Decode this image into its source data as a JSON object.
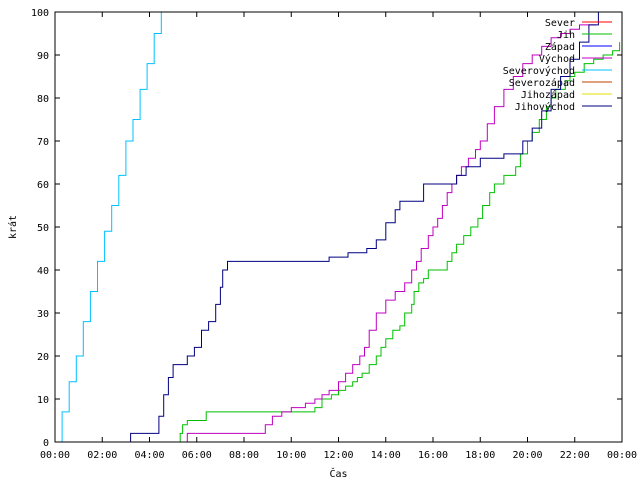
{
  "chart_data": {
    "type": "line",
    "xlabel": "Čas",
    "ylabel": "krát",
    "xlim": [
      0,
      24
    ],
    "ylim": [
      0,
      100
    ],
    "x_ticks": [
      {
        "value": 0,
        "label": "00:00"
      },
      {
        "value": 2,
        "label": "02:00"
      },
      {
        "value": 4,
        "label": "04:00"
      },
      {
        "value": 6,
        "label": "06:00"
      },
      {
        "value": 8,
        "label": "08:00"
      },
      {
        "value": 10,
        "label": "10:00"
      },
      {
        "value": 12,
        "label": "12:00"
      },
      {
        "value": 14,
        "label": "14:00"
      },
      {
        "value": 16,
        "label": "16:00"
      },
      {
        "value": 18,
        "label": "18:00"
      },
      {
        "value": 20,
        "label": "20:00"
      },
      {
        "value": 22,
        "label": "22:00"
      },
      {
        "value": 24,
        "label": "00:00"
      }
    ],
    "y_ticks": [
      0,
      10,
      20,
      30,
      40,
      50,
      60,
      70,
      80,
      90,
      100
    ],
    "grid": false,
    "legend_position": "top-right",
    "series": [
      {
        "name": "Sever",
        "color": "#ff0000",
        "x": [],
        "y": []
      },
      {
        "name": "Jih",
        "color": "#00c000",
        "x": [
          0,
          5.1,
          5.3,
          5.4,
          5.6,
          6.4,
          10.4,
          11.0,
          11.3,
          11.7,
          12.0,
          12.3,
          12.6,
          12.8,
          13.0,
          13.3,
          13.6,
          13.8,
          14.0,
          14.3,
          14.6,
          14.8,
          15.1,
          15.2,
          15.4,
          15.6,
          15.8,
          16.2,
          16.6,
          16.8,
          17.0,
          17.3,
          17.6,
          17.9,
          18.1,
          18.4,
          18.6,
          19.0,
          19.5,
          19.7,
          20.0,
          20.2,
          20.5,
          20.8,
          21.0,
          21.2,
          21.6,
          21.8,
          22.0,
          22.4,
          22.8,
          23.2,
          23.6,
          23.9
        ],
        "y": [
          0,
          0,
          2,
          4,
          5,
          7,
          7,
          8,
          10,
          11,
          12,
          13,
          14,
          15,
          16,
          18,
          20,
          22,
          24,
          26,
          27,
          30,
          32,
          35,
          37,
          38,
          40,
          40,
          42,
          44,
          46,
          48,
          50,
          52,
          55,
          58,
          60,
          62,
          64,
          67,
          70,
          72,
          75,
          78,
          80,
          82,
          84,
          85,
          86,
          88,
          89,
          90,
          91,
          93
        ]
      },
      {
        "name": "Západ",
        "color": "#0000ff",
        "x": [],
        "y": []
      },
      {
        "name": "Východ",
        "color": "#c000c0",
        "x": [
          0,
          5.5,
          5.6,
          8.5,
          8.9,
          9.2,
          9.6,
          10.0,
          10.6,
          11.0,
          11.3,
          11.6,
          12.0,
          12.3,
          12.6,
          12.9,
          13.1,
          13.3,
          13.6,
          14.0,
          14.4,
          14.8,
          15.1,
          15.3,
          15.5,
          15.8,
          16.0,
          16.2,
          16.4,
          16.6,
          16.8,
          17.0,
          17.2,
          17.5,
          17.8,
          18.0,
          18.3,
          18.6,
          19.0,
          19.4,
          19.8,
          20.2,
          20.6,
          21.0,
          21.4,
          21.8,
          22.2,
          22.6,
          22.9
        ],
        "y": [
          0,
          0,
          2,
          2,
          4,
          6,
          7,
          8,
          9,
          10,
          11,
          12,
          14,
          16,
          18,
          20,
          22,
          26,
          30,
          33,
          35,
          37,
          40,
          42,
          45,
          48,
          50,
          52,
          55,
          58,
          60,
          62,
          64,
          66,
          68,
          70,
          74,
          78,
          82,
          85,
          88,
          90,
          92,
          94,
          95,
          96,
          97,
          97,
          97
        ]
      },
      {
        "name": "Severovýchod",
        "color": "#00c0ff",
        "x": [
          0,
          0.3,
          0.6,
          0.9,
          1.2,
          1.5,
          1.8,
          2.1,
          2.4,
          2.7,
          3.0,
          3.3,
          3.6,
          3.9,
          4.2,
          4.5
        ],
        "y": [
          0,
          7,
          14,
          20,
          28,
          35,
          42,
          49,
          55,
          62,
          70,
          75,
          82,
          88,
          95,
          100
        ]
      },
      {
        "name": "Severozápad",
        "color": "#c04000",
        "x": [],
        "y": []
      },
      {
        "name": "Jihozápad",
        "color": "#e0e000",
        "x": [],
        "y": []
      },
      {
        "name": "Jihovýchod",
        "color": "#000080",
        "x": [
          0,
          3.2,
          4.2,
          4.4,
          4.6,
          4.8,
          5.0,
          5.6,
          5.9,
          6.2,
          6.5,
          6.8,
          7.0,
          7.1,
          7.3,
          8.0,
          11.6,
          12.4,
          13.2,
          13.6,
          14.0,
          14.4,
          14.6,
          15.0,
          15.6,
          16.0,
          17.0,
          17.4,
          18.0,
          19.0,
          19.8,
          20.2,
          20.6,
          21.0,
          21.4,
          21.8,
          22.2,
          22.6,
          23.0
        ],
        "y": [
          0,
          2,
          2,
          6,
          11,
          15,
          18,
          20,
          22,
          26,
          28,
          32,
          36,
          40,
          42,
          42,
          43,
          44,
          45,
          47,
          51,
          54,
          56,
          56,
          60,
          60,
          62,
          64,
          66,
          67,
          70,
          73,
          77,
          82,
          85,
          89,
          93,
          97,
          100
        ]
      }
    ]
  }
}
